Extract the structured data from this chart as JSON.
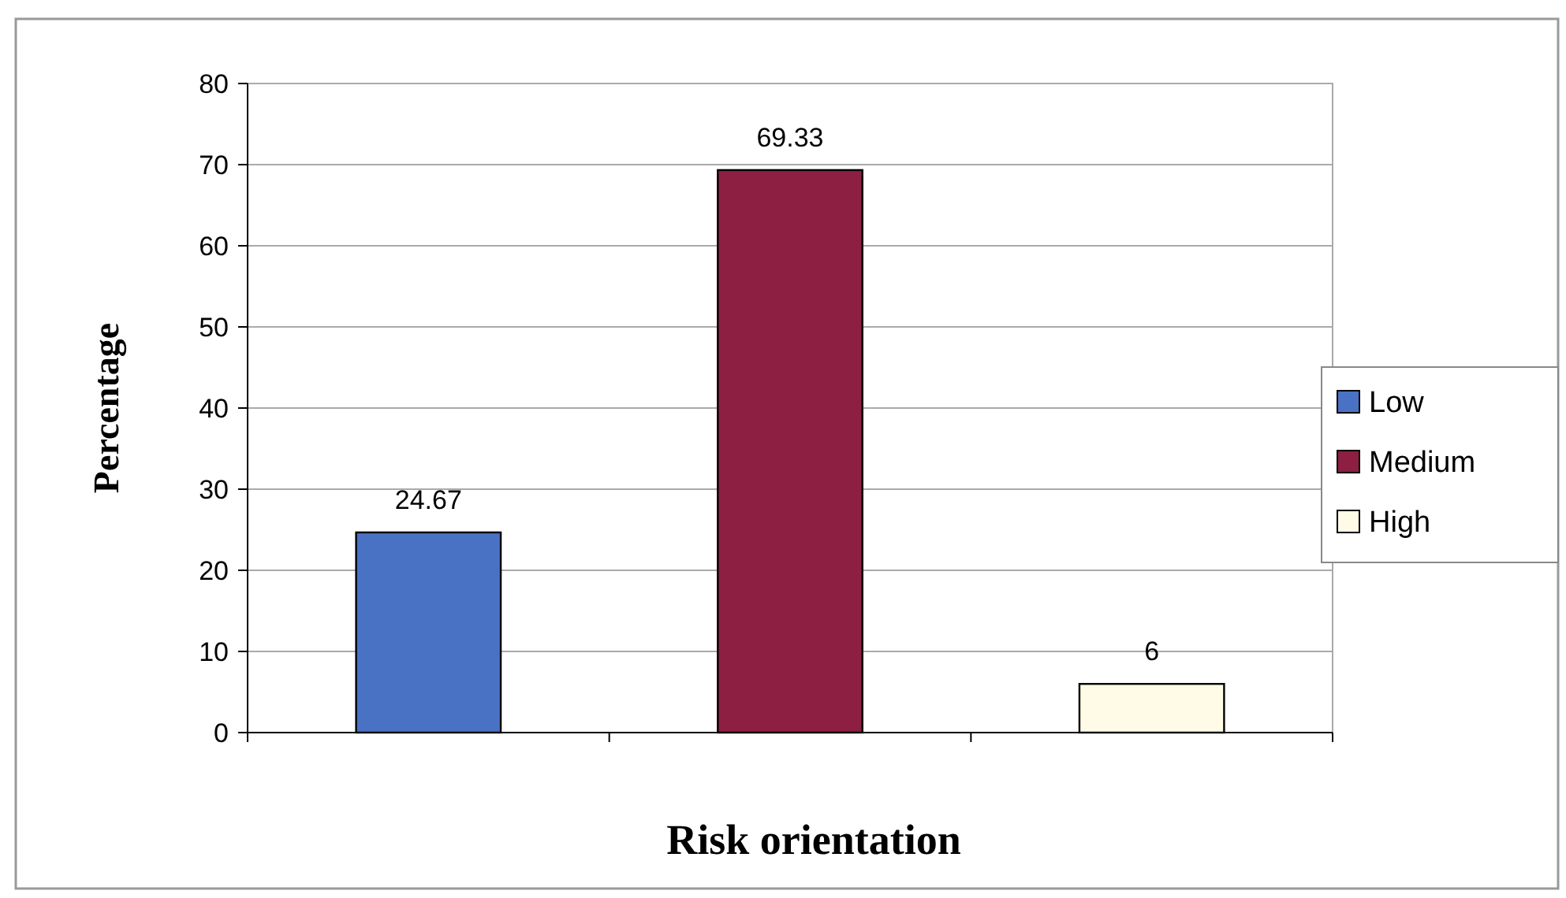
{
  "chart_data": {
    "type": "bar",
    "xlabel": "Risk orientation",
    "ylabel": "Percentage",
    "categories": [
      null,
      null,
      null
    ],
    "series": [
      {
        "name": "Low",
        "color": "#4a72c4",
        "values": [
          24.67,
          null,
          null
        ]
      },
      {
        "name": "Medium",
        "color": "#8c1f42",
        "values": [
          null,
          69.33,
          null
        ]
      },
      {
        "name": "High",
        "color": "#fffbe6",
        "values": [
          null,
          null,
          6
        ]
      }
    ],
    "ylim": [
      0,
      80
    ],
    "yticks": [
      0,
      10,
      20,
      30,
      40,
      50,
      60,
      70,
      80
    ],
    "grid": "y",
    "legend": "right",
    "data_labels": true
  }
}
